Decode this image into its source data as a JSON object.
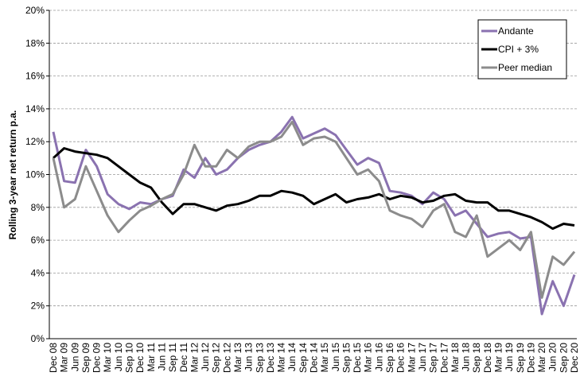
{
  "chart_data": {
    "type": "line",
    "y_label": "Rolling 3-year net return p.a.",
    "categories": [
      "Dec 08",
      "Mar 09",
      "Jun 09",
      "Sep 09",
      "Dec 09",
      "Mar 10",
      "Jun 10",
      "Sep 10",
      "Dec 10",
      "Mar 11",
      "Jun 11",
      "Sep 11",
      "Dec 11",
      "Mar 12",
      "Jun 12",
      "Sep 12",
      "Dec 12",
      "Mar 13",
      "Jun 13",
      "Sep 13",
      "Dec 13",
      "Mar 14",
      "Jun 14",
      "Sep 14",
      "Dec 14",
      "Mar 15",
      "Jun 15",
      "Sep 15",
      "Dec 15",
      "Mar 16",
      "Jun 16",
      "Sep 16",
      "Dec 16",
      "Mar 17",
      "Jun 17",
      "Sep 17",
      "Dec 17",
      "Mar 18",
      "Jun 18",
      "Sep 18",
      "Dec 18",
      "Mar 19",
      "Jun 19",
      "Sep 19",
      "Dec 19",
      "Mar 20",
      "Jun 20",
      "Sep 20",
      "Dec 20"
    ],
    "series": [
      {
        "name": "Andante",
        "color": "#8a72b0",
        "values": [
          12.6,
          9.6,
          9.5,
          11.5,
          10.5,
          8.8,
          8.2,
          7.9,
          8.3,
          8.2,
          8.5,
          8.7,
          10.3,
          9.8,
          11.0,
          10.0,
          10.3,
          11.0,
          11.5,
          11.8,
          12.0,
          12.6,
          13.5,
          12.2,
          12.5,
          12.8,
          12.4,
          11.5,
          10.6,
          11.0,
          10.7,
          9.0,
          8.9,
          8.7,
          8.2,
          8.9,
          8.5,
          7.5,
          7.8,
          7.0,
          6.2,
          6.4,
          6.5,
          6.1,
          6.2,
          1.5,
          3.5,
          2.0,
          3.9
        ]
      },
      {
        "name": "CPI + 3%",
        "color": "#000000",
        "values": [
          11.0,
          11.6,
          11.4,
          11.3,
          11.2,
          11.0,
          10.5,
          10.0,
          9.5,
          9.2,
          8.3,
          7.6,
          8.2,
          8.2,
          8.0,
          7.8,
          8.1,
          8.2,
          8.4,
          8.7,
          8.7,
          9.0,
          8.9,
          8.7,
          8.2,
          8.5,
          8.8,
          8.3,
          8.5,
          8.6,
          8.8,
          8.5,
          8.7,
          8.6,
          8.3,
          8.4,
          8.7,
          8.8,
          8.4,
          8.3,
          8.3,
          7.8,
          7.8,
          7.6,
          7.4,
          7.1,
          6.7,
          7.0,
          6.9
        ]
      },
      {
        "name": "Peer median",
        "color": "#8c8c8c",
        "values": [
          11.0,
          8.0,
          8.5,
          10.5,
          9.0,
          7.5,
          6.5,
          7.2,
          7.8,
          8.1,
          8.5,
          8.8,
          10.0,
          11.8,
          10.5,
          10.5,
          11.5,
          11.0,
          11.7,
          12.0,
          12.0,
          12.3,
          13.2,
          11.8,
          12.2,
          12.3,
          12.0,
          11.0,
          10.0,
          10.3,
          9.6,
          7.8,
          7.5,
          7.3,
          6.8,
          7.8,
          8.2,
          6.5,
          6.2,
          7.5,
          5.0,
          5.5,
          6.0,
          5.4,
          6.5,
          2.5,
          5.0,
          4.5,
          5.3
        ]
      }
    ],
    "ylim": [
      0,
      20
    ],
    "yticks": [
      {
        "value": 0,
        "label": "0%"
      },
      {
        "value": 2,
        "label": "2%"
      },
      {
        "value": 4,
        "label": "4%"
      },
      {
        "value": 6,
        "label": "6%"
      },
      {
        "value": 8,
        "label": "8%"
      },
      {
        "value": 10,
        "label": "10%"
      },
      {
        "value": 12,
        "label": "12%"
      },
      {
        "value": 14,
        "label": "14%"
      },
      {
        "value": 16,
        "label": "16%"
      },
      {
        "value": 18,
        "label": "18%"
      },
      {
        "value": 20,
        "label": "20%"
      }
    ],
    "grid": true,
    "legend": "top-right"
  }
}
